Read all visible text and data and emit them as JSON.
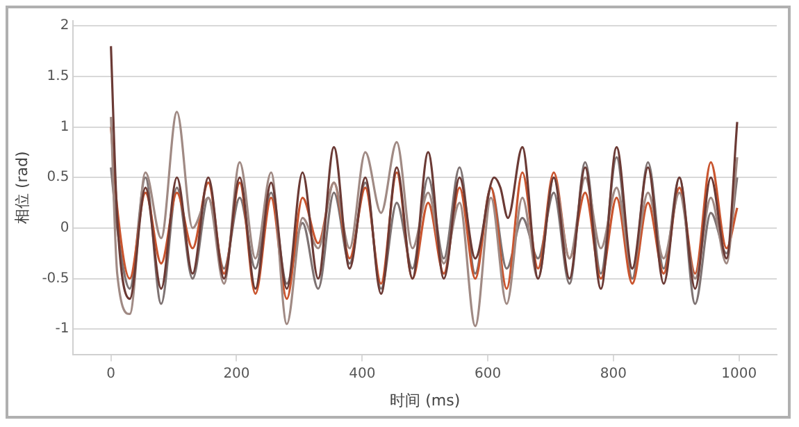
{
  "chart_data": {
    "type": "line",
    "xlabel": "时间 (ms)",
    "ylabel": "相位 (rad)",
    "xlim": [
      -60,
      1060
    ],
    "xticks": [
      0,
      200,
      400,
      600,
      800,
      1000
    ],
    "ylim": [
      -1.25,
      2.05
    ],
    "yticks": [
      -1,
      -0.5,
      0,
      0.5,
      1,
      1.5,
      2
    ],
    "grid": "y",
    "legend": false,
    "marker": "none",
    "line_style": "solid",
    "series": [
      {
        "color": "#6b3a35",
        "x": [
          0,
          10,
          30,
          55,
          80,
          105,
          130,
          155,
          180,
          205,
          230,
          255,
          280,
          305,
          330,
          355,
          380,
          405,
          430,
          455,
          480,
          505,
          530,
          555,
          580,
          610,
          620,
          632,
          655,
          680,
          705,
          730,
          755,
          780,
          805,
          830,
          855,
          880,
          905,
          930,
          955,
          980,
          997
        ],
        "values": [
          1.8,
          0.1,
          -0.7,
          0.4,
          -0.6,
          0.5,
          -0.45,
          0.5,
          -0.5,
          0.5,
          -0.6,
          0.45,
          -0.6,
          0.55,
          -0.5,
          0.8,
          -0.4,
          0.5,
          -0.65,
          0.6,
          -0.5,
          0.75,
          -0.5,
          0.5,
          -0.3,
          0.5,
          0.4,
          0.1,
          0.8,
          -0.5,
          0.5,
          -0.5,
          0.6,
          -0.6,
          0.8,
          -0.4,
          0.6,
          -0.55,
          0.5,
          -0.6,
          0.5,
          -0.3,
          1.05
        ]
      },
      {
        "color": "#a08a84",
        "x": [
          0,
          10,
          30,
          55,
          80,
          105,
          130,
          155,
          180,
          205,
          230,
          255,
          280,
          305,
          330,
          355,
          380,
          405,
          430,
          455,
          480,
          505,
          530,
          555,
          580,
          605,
          630,
          655,
          680,
          705,
          730,
          755,
          780,
          805,
          830,
          855,
          880,
          905,
          930,
          955,
          980,
          997
        ],
        "values": [
          1.1,
          -0.45,
          -0.85,
          0.55,
          -0.1,
          1.15,
          0.0,
          0.3,
          -0.55,
          0.65,
          -0.3,
          0.55,
          -0.95,
          0.1,
          -0.2,
          0.45,
          -0.2,
          0.75,
          0.15,
          0.85,
          -0.2,
          0.35,
          -0.35,
          0.25,
          -0.97,
          0.3,
          -0.75,
          0.3,
          -0.5,
          0.5,
          -0.3,
          0.5,
          -0.2,
          0.4,
          -0.4,
          0.35,
          -0.3,
          0.35,
          -0.5,
          0.3,
          -0.35,
          0.7
        ]
      },
      {
        "color": "#c9552f",
        "x": [
          0,
          10,
          30,
          55,
          80,
          105,
          130,
          155,
          180,
          205,
          230,
          255,
          280,
          305,
          330,
          355,
          380,
          405,
          430,
          455,
          480,
          505,
          530,
          555,
          580,
          605,
          630,
          655,
          680,
          705,
          730,
          755,
          780,
          805,
          830,
          855,
          880,
          905,
          930,
          955,
          980,
          997
        ],
        "values": [
          1.0,
          0.2,
          -0.5,
          0.35,
          -0.35,
          0.35,
          -0.2,
          0.45,
          -0.45,
          0.45,
          -0.65,
          0.3,
          -0.7,
          0.3,
          -0.15,
          0.45,
          -0.3,
          0.4,
          -0.55,
          0.55,
          -0.5,
          0.25,
          -0.45,
          0.4,
          -0.5,
          0.4,
          -0.6,
          0.55,
          -0.4,
          0.55,
          -0.3,
          0.35,
          -0.5,
          0.3,
          -0.55,
          0.25,
          -0.45,
          0.4,
          -0.45,
          0.65,
          -0.2,
          0.2
        ]
      },
      {
        "color": "#7e7373",
        "x": [
          0,
          10,
          30,
          55,
          80,
          105,
          130,
          155,
          180,
          205,
          230,
          255,
          280,
          305,
          330,
          355,
          380,
          405,
          430,
          455,
          480,
          505,
          530,
          555,
          580,
          605,
          630,
          655,
          680,
          705,
          730,
          755,
          780,
          805,
          830,
          855,
          880,
          905,
          930,
          955,
          980,
          997
        ],
        "values": [
          0.6,
          0.0,
          -0.6,
          0.5,
          -0.75,
          0.4,
          -0.5,
          0.3,
          -0.4,
          0.3,
          -0.4,
          0.35,
          -0.55,
          0.05,
          -0.6,
          0.35,
          -0.35,
          0.45,
          -0.6,
          0.25,
          -0.4,
          0.5,
          -0.3,
          0.6,
          -0.45,
          0.4,
          -0.4,
          0.1,
          -0.3,
          0.35,
          -0.55,
          0.65,
          -0.45,
          0.7,
          -0.5,
          0.65,
          -0.4,
          0.5,
          -0.75,
          0.15,
          -0.25,
          0.5
        ]
      }
    ]
  }
}
